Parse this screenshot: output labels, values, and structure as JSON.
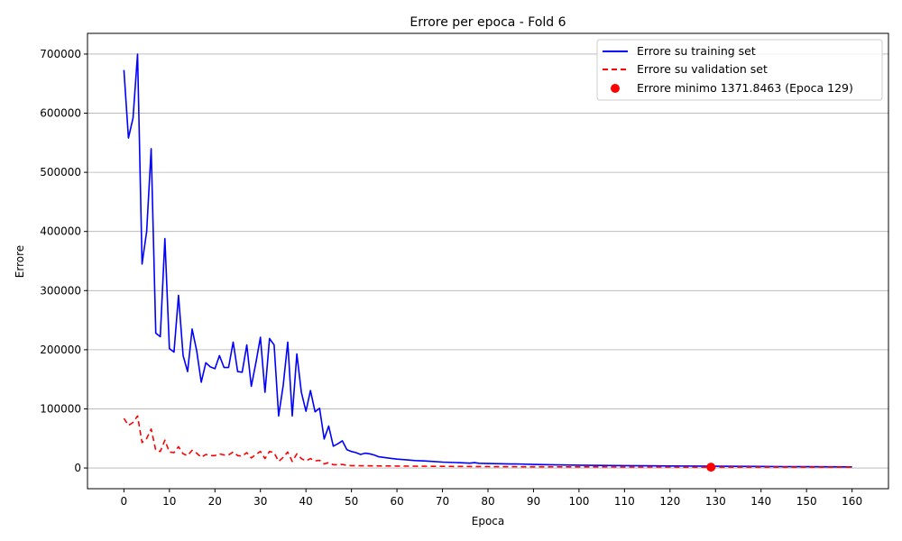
{
  "chart_data": {
    "type": "line",
    "title": "Errore per epoca - Fold 6",
    "xlabel": "Epoca",
    "ylabel": "Errore",
    "xlim": [
      -8,
      168
    ],
    "ylim": [
      -35000,
      735000
    ],
    "xticks": [
      0,
      10,
      20,
      30,
      40,
      50,
      60,
      70,
      80,
      90,
      100,
      110,
      120,
      130,
      140,
      150,
      160
    ],
    "yticks": [
      0,
      100000,
      200000,
      300000,
      400000,
      500000,
      600000,
      700000
    ],
    "grid": "y",
    "legend_position": "top-right",
    "series": [
      {
        "name": "Errore su training set",
        "style": "solid",
        "color": "#0000ff",
        "points": [
          [
            0,
            673000
          ],
          [
            1,
            558000
          ],
          [
            2,
            592000
          ],
          [
            3,
            700000
          ],
          [
            4,
            345000
          ],
          [
            5,
            400000
          ],
          [
            6,
            540000
          ],
          [
            7,
            228000
          ],
          [
            8,
            222000
          ],
          [
            9,
            388000
          ],
          [
            10,
            202000
          ],
          [
            11,
            196000
          ],
          [
            12,
            292000
          ],
          [
            13,
            190000
          ],
          [
            14,
            163000
          ],
          [
            15,
            235000
          ],
          [
            16,
            198000
          ],
          [
            17,
            145000
          ],
          [
            18,
            178000
          ],
          [
            19,
            171000
          ],
          [
            20,
            168000
          ],
          [
            21,
            190000
          ],
          [
            22,
            170000
          ],
          [
            23,
            170000
          ],
          [
            24,
            213000
          ],
          [
            25,
            163000
          ],
          [
            26,
            162000
          ],
          [
            27,
            208000
          ],
          [
            28,
            138000
          ],
          [
            29,
            178000
          ],
          [
            30,
            221000
          ],
          [
            31,
            128000
          ],
          [
            32,
            219000
          ],
          [
            33,
            208000
          ],
          [
            34,
            88000
          ],
          [
            35,
            140000
          ],
          [
            36,
            213000
          ],
          [
            37,
            88000
          ],
          [
            38,
            193000
          ],
          [
            39,
            128000
          ],
          [
            40,
            96000
          ],
          [
            41,
            131000
          ],
          [
            42,
            95000
          ],
          [
            43,
            101000
          ],
          [
            44,
            49000
          ],
          [
            45,
            71000
          ],
          [
            46,
            37000
          ],
          [
            47,
            41000
          ],
          [
            48,
            46000
          ],
          [
            49,
            31000
          ],
          [
            50,
            28000
          ],
          [
            51,
            26000
          ],
          [
            52,
            23000
          ],
          [
            53,
            25000
          ],
          [
            54,
            24000
          ],
          [
            55,
            22000
          ],
          [
            56,
            19000
          ],
          [
            58,
            17000
          ],
          [
            60,
            15000
          ],
          [
            62,
            14000
          ],
          [
            64,
            12500
          ],
          [
            66,
            12000
          ],
          [
            68,
            11000
          ],
          [
            70,
            10000
          ],
          [
            73,
            9200
          ],
          [
            76,
            8200
          ],
          [
            77,
            9000
          ],
          [
            78,
            8000
          ],
          [
            80,
            7500
          ],
          [
            85,
            6800
          ],
          [
            86,
            7000
          ],
          [
            90,
            6000
          ],
          [
            95,
            5200
          ],
          [
            100,
            4800
          ],
          [
            105,
            4400
          ],
          [
            110,
            4000
          ],
          [
            115,
            3700
          ],
          [
            120,
            3400
          ],
          [
            125,
            3200
          ],
          [
            130,
            3000
          ],
          [
            135,
            2800
          ],
          [
            140,
            2600
          ],
          [
            145,
            2400
          ],
          [
            150,
            2200
          ],
          [
            155,
            2000
          ],
          [
            160,
            1900
          ]
        ]
      },
      {
        "name": "Errore su validation set",
        "style": "dashed",
        "color": "#ff0000",
        "points": [
          [
            0,
            84000
          ],
          [
            1,
            72000
          ],
          [
            2,
            77000
          ],
          [
            3,
            88000
          ],
          [
            4,
            43000
          ],
          [
            5,
            50000
          ],
          [
            6,
            66000
          ],
          [
            7,
            30000
          ],
          [
            8,
            28000
          ],
          [
            9,
            47000
          ],
          [
            10,
            27000
          ],
          [
            11,
            26000
          ],
          [
            12,
            36000
          ],
          [
            13,
            24000
          ],
          [
            14,
            21000
          ],
          [
            15,
            30000
          ],
          [
            16,
            25000
          ],
          [
            17,
            18000
          ],
          [
            18,
            23000
          ],
          [
            19,
            21000
          ],
          [
            20,
            21000
          ],
          [
            21,
            24000
          ],
          [
            22,
            22000
          ],
          [
            23,
            22000
          ],
          [
            24,
            27000
          ],
          [
            25,
            21000
          ],
          [
            26,
            20000
          ],
          [
            27,
            26000
          ],
          [
            28,
            17000
          ],
          [
            29,
            23000
          ],
          [
            30,
            28000
          ],
          [
            31,
            16000
          ],
          [
            32,
            28000
          ],
          [
            33,
            26000
          ],
          [
            34,
            11000
          ],
          [
            35,
            18000
          ],
          [
            36,
            27000
          ],
          [
            37,
            11000
          ],
          [
            38,
            24000
          ],
          [
            39,
            16000
          ],
          [
            40,
            12000
          ],
          [
            41,
            16000
          ],
          [
            42,
            12000
          ],
          [
            43,
            13000
          ],
          [
            44,
            7000
          ],
          [
            45,
            9000
          ],
          [
            46,
            5500
          ],
          [
            47,
            5500
          ],
          [
            48,
            6000
          ],
          [
            49,
            4500
          ],
          [
            50,
            4000
          ],
          [
            55,
            3600
          ],
          [
            60,
            3200
          ],
          [
            65,
            3000
          ],
          [
            70,
            2800
          ],
          [
            80,
            2400
          ],
          [
            90,
            2100
          ],
          [
            100,
            1900
          ],
          [
            110,
            1700
          ],
          [
            120,
            1550
          ],
          [
            129,
            1371.8463
          ],
          [
            140,
            1500
          ],
          [
            150,
            1450
          ],
          [
            160,
            1400
          ]
        ]
      }
    ],
    "marker": {
      "label": "Errore minimo 1371.8463 (Epoca 129)",
      "x": 129,
      "y": 1371.8463,
      "color": "#ff0000"
    }
  }
}
